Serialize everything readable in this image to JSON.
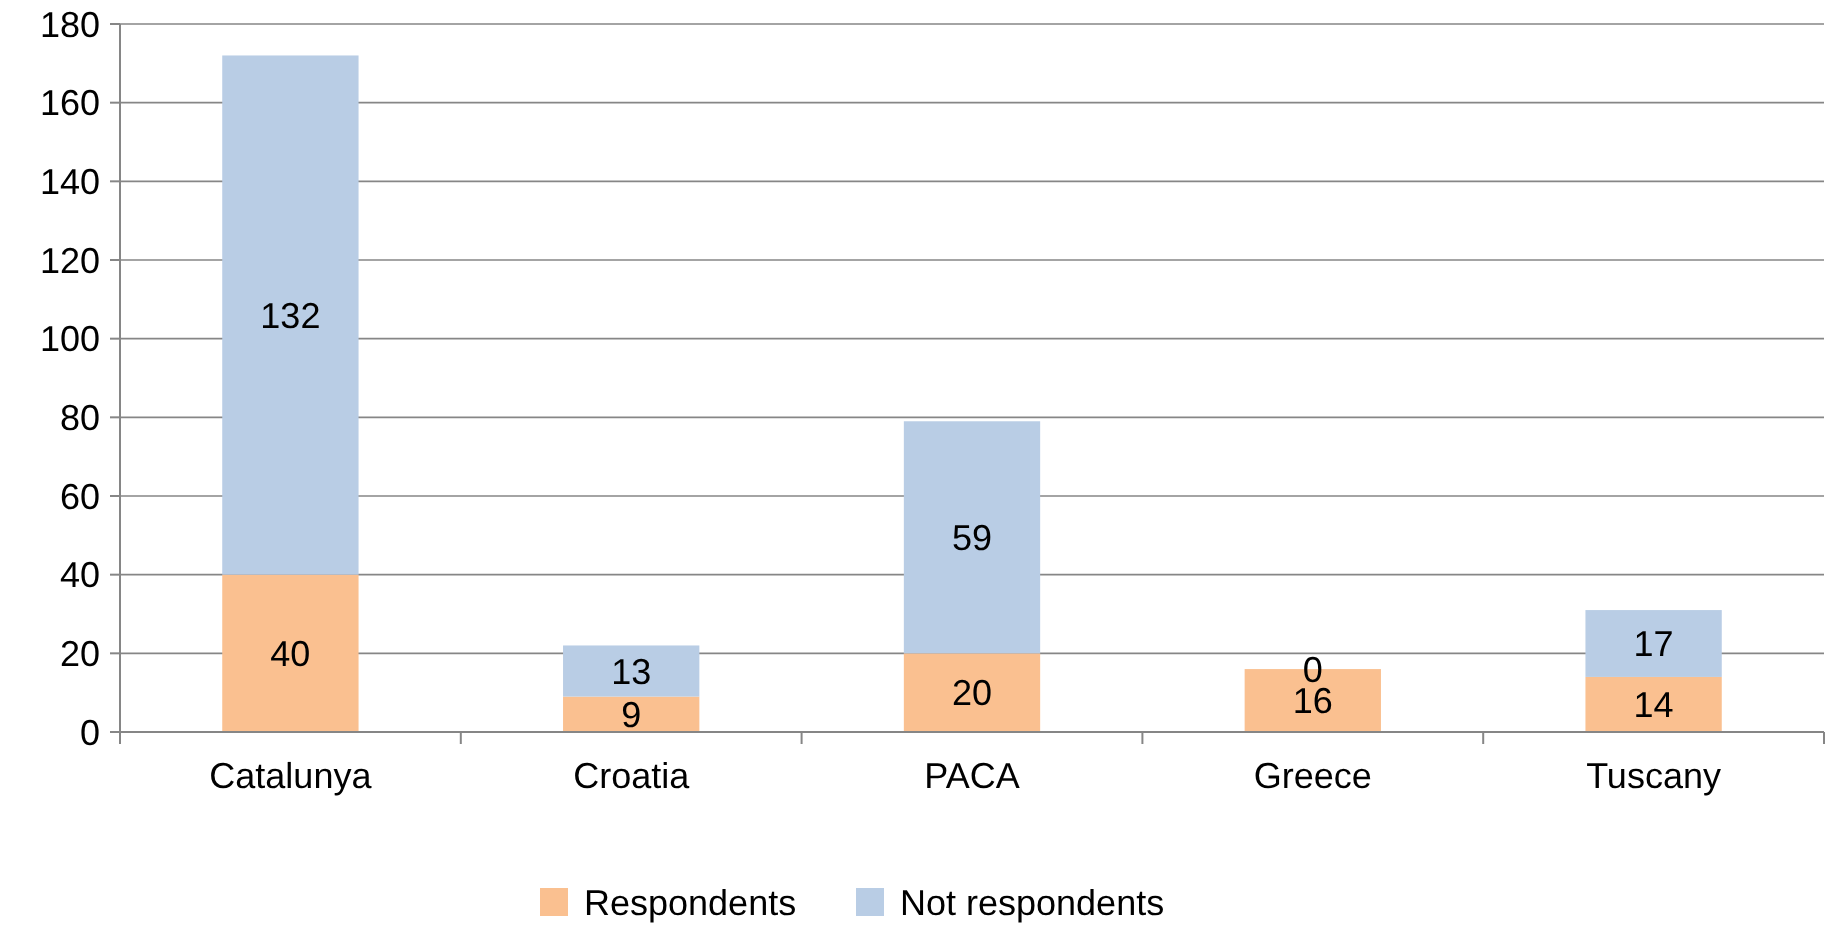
{
  "chart_data": {
    "type": "bar",
    "stacked": true,
    "categories": [
      "Catalunya",
      "Croatia",
      "PACA",
      "Greece",
      "Tuscany"
    ],
    "series": [
      {
        "name": "Respondents",
        "color": "#fac090",
        "values": [
          40,
          9,
          20,
          16,
          14
        ]
      },
      {
        "name": "Not respondents",
        "color": "#b9cde5",
        "values": [
          132,
          13,
          59,
          0,
          17
        ]
      }
    ],
    "ylim": [
      0,
      180
    ],
    "yticks": [
      0,
      20,
      40,
      60,
      80,
      100,
      120,
      140,
      160,
      180
    ],
    "grid": "y",
    "legend": "bottom",
    "data_labels": true
  }
}
